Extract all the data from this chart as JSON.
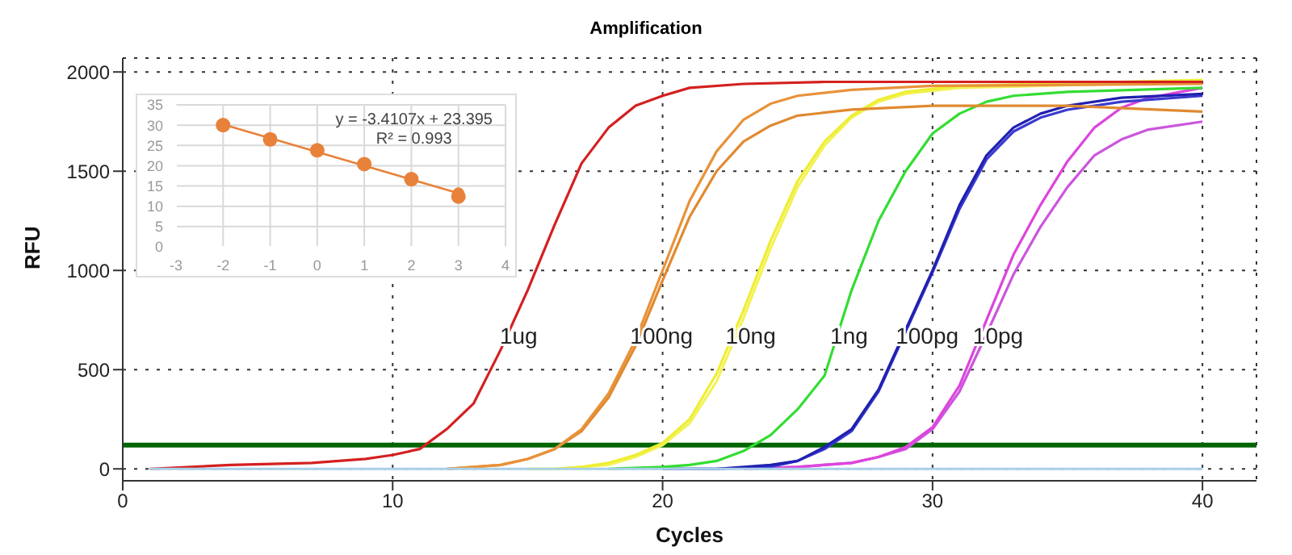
{
  "chart_data": [
    {
      "type": "line",
      "title": "Amplification",
      "xlabel": "Cycles",
      "ylabel": "RFU",
      "xlim": [
        0,
        42
      ],
      "xticks": [
        0,
        10,
        20,
        30,
        40
      ],
      "ylim": [
        -60,
        2070
      ],
      "yticks": [
        0,
        500,
        1000,
        1500,
        2000
      ],
      "grid": true,
      "marker": "none",
      "line_style": "solid",
      "series": [
        {
          "color": "#a8d0e8",
          "x": [
            1,
            40
          ],
          "values": [
            0,
            0
          ]
        },
        {
          "name": "1ug",
          "color": "#d42020",
          "x": [
            1,
            4,
            7,
            9,
            10,
            11,
            12,
            13,
            14,
            15,
            16,
            17,
            18,
            19,
            20,
            21,
            23,
            26,
            30,
            40
          ],
          "values": [
            0,
            20,
            30,
            50,
            70,
            100,
            200,
            330,
            600,
            900,
            1230,
            1540,
            1720,
            1830,
            1880,
            1920,
            1940,
            1950,
            1950,
            1950
          ]
        },
        {
          "name": "100ng",
          "color": "#e8923a",
          "x": [
            12,
            13,
            14,
            15,
            16,
            17,
            18,
            19,
            20,
            21,
            22,
            23,
            24,
            25,
            27,
            30,
            40
          ],
          "values": [
            0,
            10,
            20,
            50,
            100,
            200,
            380,
            650,
            1000,
            1350,
            1600,
            1760,
            1840,
            1880,
            1910,
            1930,
            1940
          ]
        },
        {
          "color": "#e08a30",
          "x": [
            12,
            13,
            14,
            15,
            16,
            17,
            18,
            19,
            20,
            21,
            22,
            23,
            24,
            25,
            27,
            30,
            35,
            40
          ],
          "values": [
            0,
            10,
            20,
            50,
            100,
            190,
            360,
            620,
            950,
            1270,
            1500,
            1650,
            1730,
            1780,
            1810,
            1830,
            1830,
            1800
          ]
        },
        {
          "name": "10ng",
          "color": "#eeee33",
          "x": [
            15,
            16,
            17,
            18,
            19,
            20,
            21,
            22,
            23,
            24,
            25,
            26,
            27,
            28,
            29,
            31,
            40
          ],
          "values": [
            0,
            0,
            10,
            30,
            70,
            130,
            250,
            480,
            800,
            1150,
            1450,
            1650,
            1780,
            1860,
            1900,
            1930,
            1960
          ]
        },
        {
          "color": "#f2f25a",
          "x": [
            15,
            16,
            17,
            18,
            19,
            20,
            21,
            22,
            23,
            24,
            25,
            26,
            27,
            28,
            29,
            31,
            40
          ],
          "values": [
            0,
            0,
            10,
            20,
            60,
            120,
            230,
            440,
            760,
            1110,
            1420,
            1630,
            1770,
            1850,
            1890,
            1920,
            1950
          ]
        },
        {
          "name": "1ng",
          "color": "#33dd33",
          "x": [
            18,
            20,
            21,
            22,
            23,
            24,
            25,
            26,
            27,
            28,
            29,
            30,
            31,
            32,
            33,
            35,
            40
          ],
          "values": [
            0,
            10,
            20,
            40,
            90,
            170,
            300,
            470,
            900,
            1250,
            1500,
            1690,
            1790,
            1850,
            1880,
            1900,
            1920
          ]
        },
        {
          "name": "100pg",
          "color": "#2020b0",
          "x": [
            20,
            22,
            24,
            25,
            26,
            27,
            28,
            29,
            30,
            31,
            32,
            33,
            34,
            35,
            37,
            40
          ],
          "values": [
            0,
            0,
            20,
            40,
            110,
            200,
            400,
            700,
            1000,
            1330,
            1580,
            1720,
            1790,
            1830,
            1870,
            1890
          ]
        },
        {
          "color": "#3a3ad0",
          "x": [
            20,
            22,
            24,
            25,
            26,
            27,
            28,
            29,
            30,
            31,
            32,
            33,
            34,
            35,
            37,
            40
          ],
          "values": [
            0,
            0,
            10,
            40,
            100,
            190,
            390,
            690,
            990,
            1310,
            1560,
            1700,
            1770,
            1810,
            1850,
            1880
          ]
        },
        {
          "name": "10pg",
          "color": "#dd44dd",
          "x": [
            23,
            25,
            27,
            28,
            29,
            30,
            31,
            32,
            33,
            34,
            35,
            36,
            37,
            38,
            40
          ],
          "values": [
            0,
            10,
            30,
            60,
            110,
            210,
            420,
            750,
            1080,
            1330,
            1550,
            1720,
            1820,
            1870,
            1920
          ]
        },
        {
          "color": "#cc55dd",
          "x": [
            23,
            25,
            27,
            28,
            29,
            30,
            31,
            32,
            33,
            34,
            35,
            36,
            37,
            38,
            40
          ],
          "values": [
            0,
            10,
            30,
            60,
            100,
            200,
            390,
            680,
            980,
            1220,
            1420,
            1580,
            1660,
            1710,
            1750
          ]
        }
      ],
      "ref_lines": [
        {
          "axis": "y",
          "value": 120,
          "color": "#006400"
        }
      ]
    },
    {
      "type": "scatter",
      "xlim": [
        -3,
        4
      ],
      "xticks": [
        -3,
        -2,
        -1,
        0,
        1,
        2,
        3,
        4
      ],
      "ylim": [
        0,
        35
      ],
      "yticks": [
        0,
        5,
        10,
        15,
        20,
        25,
        30,
        35
      ],
      "grid": true,
      "marker": "circle",
      "series": [
        {
          "color": "#e8823a",
          "x": [
            -2,
            -1,
            0,
            1,
            2,
            3
          ],
          "values": [
            30,
            26.5,
            23.8,
            20.4,
            16.7,
            12.4
          ]
        },
        {
          "type": "line",
          "color": "#e8823a",
          "x": [
            -2,
            3
          ],
          "values": [
            30.2,
            13.2
          ]
        }
      ],
      "annotations": [
        "y = -3.4107x + 23.395",
        "R² = 0.993"
      ]
    }
  ]
}
